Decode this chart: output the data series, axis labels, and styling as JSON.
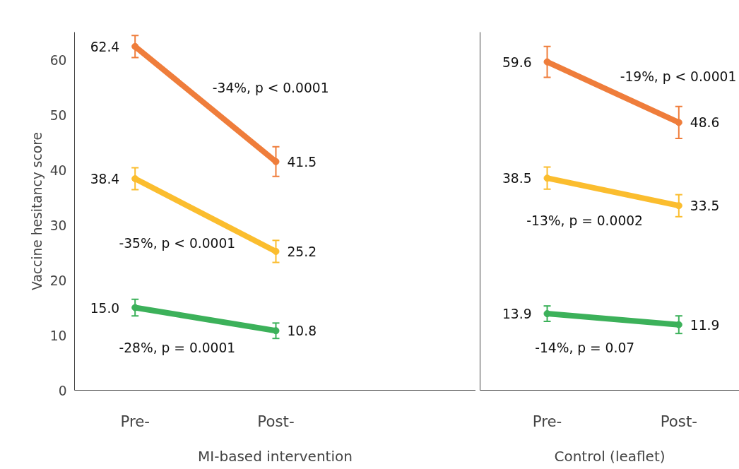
{
  "chart_data": [
    {
      "type": "line",
      "xlabel": "MI-based intervention",
      "ylabel": "Vaccine hesitancy score",
      "categories": [
        "Pre-",
        "Post-"
      ],
      "ylim": [
        0,
        65
      ],
      "yticks": [
        0,
        10,
        20,
        30,
        40,
        50,
        60
      ],
      "grid": false,
      "marker": "circle",
      "line_style": "solid",
      "series": [
        {
          "color": "#ef7d3b",
          "values": [
            62.4,
            41.5
          ],
          "value_labels": [
            "62.4",
            "41.5"
          ],
          "errors": [
            2.0,
            2.7
          ]
        },
        {
          "color": "#fbbd2e",
          "values": [
            38.4,
            25.2
          ],
          "value_labels": [
            "38.4",
            "25.2"
          ],
          "errors": [
            2.0,
            2.0
          ]
        },
        {
          "color": "#3cb15a",
          "values": [
            15.0,
            10.8
          ],
          "value_labels": [
            "15.0",
            "10.8"
          ],
          "errors": [
            1.5,
            1.4
          ]
        }
      ],
      "annotations": [
        "-34%, p < 0.0001",
        "-35%, p < 0.0001",
        "-28%, p = 0.0001"
      ]
    },
    {
      "type": "line",
      "xlabel": "Control (leaflet)",
      "categories": [
        "Pre-",
        "Post-"
      ],
      "ylim": [
        0,
        65
      ],
      "yticks": [
        0,
        10,
        20,
        30,
        40,
        50,
        60
      ],
      "tick_labels": "x",
      "grid": false,
      "marker": "circle",
      "line_style": "solid",
      "series": [
        {
          "color": "#ef7d3b",
          "values": [
            59.6,
            48.6
          ],
          "value_labels": [
            "59.6",
            "48.6"
          ],
          "errors": [
            2.8,
            2.9
          ]
        },
        {
          "color": "#fbbd2e",
          "values": [
            38.5,
            33.5
          ],
          "value_labels": [
            "38.5",
            "33.5"
          ],
          "errors": [
            2.0,
            2.0
          ]
        },
        {
          "color": "#3cb15a",
          "values": [
            13.9,
            11.9
          ],
          "value_labels": [
            "13.9",
            "11.9"
          ],
          "errors": [
            1.4,
            1.6
          ]
        }
      ],
      "annotations": [
        "-19%, p < 0.0001",
        "-13%, p = 0.0002",
        "-14%, p = 0.07"
      ]
    }
  ]
}
